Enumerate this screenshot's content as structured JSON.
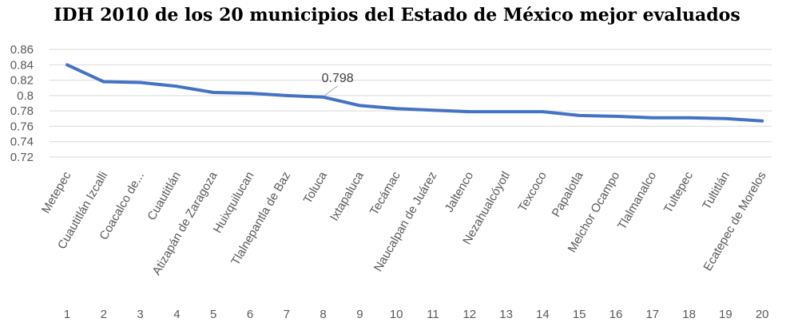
{
  "chart_data": {
    "type": "line",
    "title": "IDH 2010 de los 20 municipios del Estado de México mejor evaluados",
    "xlabel": "",
    "ylabel": "",
    "categories": [
      "Metepec",
      "Cuautitlán Izcalli",
      "Coacalco de...",
      "Cuautitlán",
      "Atizapán de Zaragoza",
      "Huixquilucan",
      "Tlalnepantla de Baz",
      "Toluca",
      "Ixtapaluca",
      "Tecámac",
      "Naucalpan de Juárez",
      "Jaltenco",
      "Nezahualcóyotl",
      "Texcoco",
      "Papalotla",
      "Melchor Ocampo",
      "Tlalmanalco",
      "Tultepec",
      "Tultitlán",
      "Ecatepec de Morelos"
    ],
    "ranks": [
      "1",
      "2",
      "3",
      "4",
      "5",
      "6",
      "7",
      "8",
      "9",
      "10",
      "11",
      "12",
      "13",
      "14",
      "15",
      "16",
      "17",
      "18",
      "19",
      "20"
    ],
    "values": [
      0.84,
      0.818,
      0.817,
      0.812,
      0.804,
      0.803,
      0.8,
      0.798,
      0.787,
      0.783,
      0.781,
      0.779,
      0.779,
      0.779,
      0.774,
      0.773,
      0.771,
      0.771,
      0.77,
      0.767
    ],
    "ylim": [
      0.72,
      0.86
    ],
    "yticks": [
      "0.86",
      "0.84",
      "0.82",
      "0.8",
      "0.78",
      "0.76",
      "0.74",
      "0.72"
    ],
    "grid": true,
    "line_color": "#4472C4",
    "grid_color": "#D9D9D9",
    "annotations": [
      {
        "index": 7,
        "text": "0.798"
      }
    ]
  }
}
